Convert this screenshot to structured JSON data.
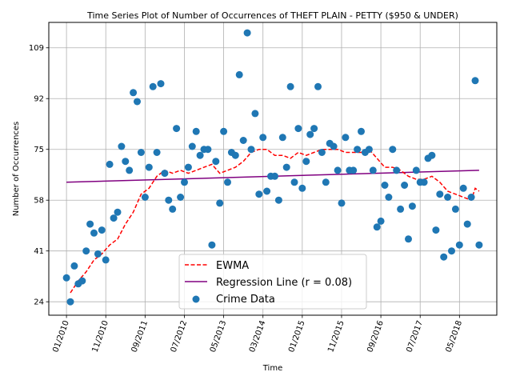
{
  "chart_data": {
    "type": "scatter",
    "title": "Time Series Plot of Number of Occurrences of THEFT PLAIN - PETTY ($950 & UNDER)",
    "xlabel": "Time",
    "ylabel": "Number of Occurrences",
    "x_ticks": [
      "01/2010",
      "11/2010",
      "09/2011",
      "07/2012",
      "05/2013",
      "03/2014",
      "01/2015",
      "11/2015",
      "09/2016",
      "07/2017",
      "05/2018"
    ],
    "y_ticks": [
      24,
      41,
      58,
      75,
      92,
      109
    ],
    "ylim": [
      19.5,
      117.5
    ],
    "xlim_months": [
      -4.5,
      109.5
    ],
    "grid": true,
    "legend_position": "lower center",
    "legend": {
      "ewma_label": "EWMA",
      "regression_label": "Regression Line (r = 0.08)",
      "crime_label": "Crime Data"
    },
    "series_colors": {
      "crime_data": "#1f77b4",
      "ewma": "#ff0000",
      "regression": "#800080"
    },
    "crime_data": [
      [
        "01/2010",
        32
      ],
      [
        "02/2010",
        24
      ],
      [
        "03/2010",
        36
      ],
      [
        "04/2010",
        30
      ],
      [
        "05/2010",
        31
      ],
      [
        "06/2010",
        41
      ],
      [
        "07/2010",
        50
      ],
      [
        "08/2010",
        47
      ],
      [
        "09/2010",
        40
      ],
      [
        "10/2010",
        48
      ],
      [
        "11/2010",
        38
      ],
      [
        "12/2010",
        70
      ],
      [
        "01/2011",
        52
      ],
      [
        "02/2011",
        54
      ],
      [
        "03/2011",
        76
      ],
      [
        "04/2011",
        71
      ],
      [
        "05/2011",
        68
      ],
      [
        "06/2011",
        94
      ],
      [
        "07/2011",
        91
      ],
      [
        "08/2011",
        74
      ],
      [
        "09/2011",
        59
      ],
      [
        "10/2011",
        69
      ],
      [
        "11/2011",
        96
      ],
      [
        "12/2011",
        74
      ],
      [
        "01/2012",
        97
      ],
      [
        "02/2012",
        67
      ],
      [
        "03/2012",
        58
      ],
      [
        "04/2012",
        55
      ],
      [
        "05/2012",
        82
      ],
      [
        "06/2012",
        59
      ],
      [
        "07/2012",
        64
      ],
      [
        "08/2012",
        69
      ],
      [
        "09/2012",
        76
      ],
      [
        "10/2012",
        81
      ],
      [
        "11/2012",
        73
      ],
      [
        "12/2012",
        75
      ],
      [
        "01/2013",
        75
      ],
      [
        "02/2013",
        43
      ],
      [
        "03/2013",
        71
      ],
      [
        "04/2013",
        57
      ],
      [
        "05/2013",
        81
      ],
      [
        "06/2013",
        64
      ],
      [
        "07/2013",
        74
      ],
      [
        "08/2013",
        73
      ],
      [
        "09/2013",
        100
      ],
      [
        "10/2013",
        78
      ],
      [
        "11/2013",
        114
      ],
      [
        "12/2013",
        75
      ],
      [
        "01/2014",
        87
      ],
      [
        "02/2014",
        60
      ],
      [
        "03/2014",
        79
      ],
      [
        "04/2014",
        61
      ],
      [
        "05/2014",
        66
      ],
      [
        "06/2014",
        66
      ],
      [
        "07/2014",
        58
      ],
      [
        "08/2014",
        79
      ],
      [
        "09/2014",
        69
      ],
      [
        "10/2014",
        96
      ],
      [
        "11/2014",
        64
      ],
      [
        "12/2014",
        82
      ],
      [
        "01/2015",
        62
      ],
      [
        "02/2015",
        71
      ],
      [
        "03/2015",
        80
      ],
      [
        "04/2015",
        82
      ],
      [
        "05/2015",
        96
      ],
      [
        "06/2015",
        74
      ],
      [
        "07/2015",
        64
      ],
      [
        "08/2015",
        77
      ],
      [
        "09/2015",
        76
      ],
      [
        "10/2015",
        68
      ],
      [
        "11/2015",
        57
      ],
      [
        "12/2015",
        79
      ],
      [
        "01/2016",
        68
      ],
      [
        "02/2016",
        68
      ],
      [
        "03/2016",
        75
      ],
      [
        "04/2016",
        81
      ],
      [
        "05/2016",
        74
      ],
      [
        "06/2016",
        75
      ],
      [
        "07/2016",
        68
      ],
      [
        "08/2016",
        49
      ],
      [
        "09/2016",
        51
      ],
      [
        "10/2016",
        63
      ],
      [
        "11/2016",
        59
      ],
      [
        "12/2016",
        75
      ],
      [
        "01/2017",
        68
      ],
      [
        "02/2017",
        55
      ],
      [
        "03/2017",
        63
      ],
      [
        "04/2017",
        45
      ],
      [
        "05/2017",
        56
      ],
      [
        "06/2017",
        68
      ],
      [
        "07/2017",
        64
      ],
      [
        "08/2017",
        64
      ],
      [
        "09/2017",
        72
      ],
      [
        "10/2017",
        73
      ],
      [
        "11/2017",
        48
      ],
      [
        "12/2017",
        60
      ],
      [
        "01/2018",
        39
      ],
      [
        "02/2018",
        59
      ],
      [
        "03/2018",
        41
      ],
      [
        "04/2018",
        55
      ],
      [
        "05/2018",
        43
      ],
      [
        "06/2018",
        62
      ],
      [
        "07/2018",
        50
      ],
      [
        "08/2018",
        59
      ],
      [
        "09/2018",
        98
      ],
      [
        "10/2018",
        43
      ]
    ],
    "ewma": [
      [
        "02/2010",
        27
      ],
      [
        "04/2010",
        31
      ],
      [
        "06/2010",
        34
      ],
      [
        "08/2010",
        38
      ],
      [
        "10/2010",
        40
      ],
      [
        "12/2010",
        43
      ],
      [
        "02/2011",
        45
      ],
      [
        "04/2011",
        50
      ],
      [
        "06/2011",
        54
      ],
      [
        "08/2011",
        60
      ],
      [
        "10/2011",
        62
      ],
      [
        "12/2011",
        66
      ],
      [
        "02/2012",
        68
      ],
      [
        "04/2012",
        67
      ],
      [
        "06/2012",
        68
      ],
      [
        "08/2012",
        67
      ],
      [
        "10/2012",
        68
      ],
      [
        "12/2012",
        69
      ],
      [
        "02/2013",
        70
      ],
      [
        "04/2013",
        67
      ],
      [
        "06/2013",
        68
      ],
      [
        "08/2013",
        69
      ],
      [
        "10/2013",
        71
      ],
      [
        "12/2013",
        74
      ],
      [
        "02/2014",
        75
      ],
      [
        "04/2014",
        75
      ],
      [
        "06/2014",
        73
      ],
      [
        "08/2014",
        73
      ],
      [
        "10/2014",
        72
      ],
      [
        "12/2014",
        74
      ],
      [
        "02/2015",
        73
      ],
      [
        "04/2015",
        74
      ],
      [
        "06/2015",
        75
      ],
      [
        "08/2015",
        75
      ],
      [
        "10/2015",
        75
      ],
      [
        "12/2015",
        74
      ],
      [
        "02/2016",
        74
      ],
      [
        "04/2016",
        74
      ],
      [
        "06/2016",
        75
      ],
      [
        "08/2016",
        72
      ],
      [
        "10/2016",
        69
      ],
      [
        "12/2016",
        69
      ],
      [
        "02/2017",
        68
      ],
      [
        "04/2017",
        66
      ],
      [
        "06/2017",
        65
      ],
      [
        "08/2017",
        65
      ],
      [
        "10/2017",
        66
      ],
      [
        "12/2017",
        64
      ],
      [
        "02/2018",
        61
      ],
      [
        "04/2018",
        60
      ],
      [
        "06/2018",
        59
      ],
      [
        "08/2018",
        58
      ],
      [
        "09/2018",
        62
      ],
      [
        "10/2018",
        61
      ]
    ],
    "regression": [
      [
        "01/2010",
        64
      ],
      [
        "10/2018",
        68
      ]
    ]
  }
}
